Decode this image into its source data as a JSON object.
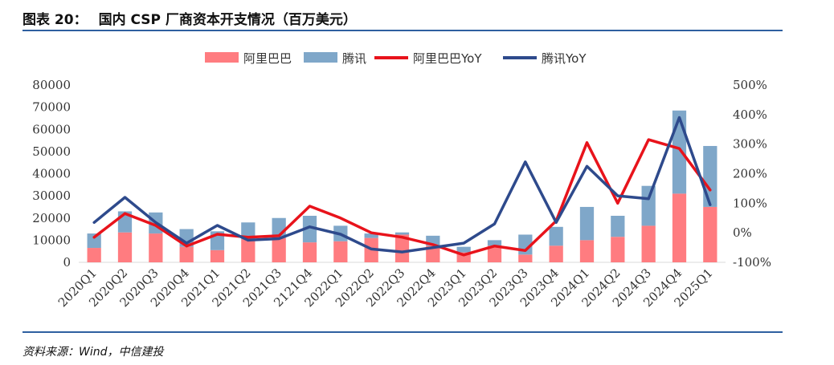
{
  "figure": {
    "number": "图表 20：",
    "title": "国内 CSP 厂商资本开支情况（百万美元）",
    "source": "资料来源：Wind，中信建投"
  },
  "colors": {
    "alibaba_bar": "#ff7c80",
    "tencent_bar": "#7fa7c9",
    "alibaba_line": "#e8131b",
    "tencent_line": "#2e4a8c",
    "rule": "#2e5fa0"
  },
  "chart_data": {
    "type": "bar",
    "stacked": true,
    "categories": [
      "2020Q1",
      "2020Q2",
      "2020Q3",
      "2020Q4",
      "2021Q1",
      "2021Q2",
      "2021Q3",
      "2121Q4",
      "2022Q1",
      "2022Q2",
      "2022Q3",
      "2022Q4",
      "2023Q1",
      "2023Q2",
      "2023Q3",
      "2023Q4",
      "2024Q1",
      "2024Q2",
      "2024Q3",
      "2024Q4",
      "2025Q1"
    ],
    "series": [
      {
        "name": "阿里巴巴",
        "kind": "bar",
        "axis": "left",
        "values": [
          6500,
          13500,
          13000,
          7000,
          5500,
          10500,
          11000,
          9000,
          9500,
          11000,
          12500,
          7500,
          4500,
          7500,
          3500,
          7500,
          10000,
          11500,
          16500,
          31000,
          25000
        ]
      },
      {
        "name": "腾讯",
        "kind": "bar",
        "axis": "left",
        "values": [
          6500,
          9500,
          9500,
          8000,
          8500,
          7500,
          9000,
          12000,
          7000,
          2000,
          1000,
          4500,
          2500,
          2500,
          9000,
          8500,
          15000,
          9500,
          18000,
          37500,
          27500
        ]
      },
      {
        "name": "阿里巴巴YoY",
        "kind": "line",
        "axis": "right",
        "values": [
          -15,
          65,
          25,
          -45,
          -5,
          -15,
          -10,
          90,
          50,
          0,
          -15,
          -40,
          -75,
          -45,
          -60,
          40,
          305,
          100,
          315,
          285,
          145
        ]
      },
      {
        "name": "腾讯YoY",
        "kind": "line",
        "axis": "right",
        "values": [
          35,
          120,
          35,
          -35,
          25,
          -25,
          -20,
          20,
          -5,
          -55,
          -65,
          -50,
          -35,
          30,
          240,
          35,
          225,
          125,
          115,
          390,
          95
        ]
      }
    ],
    "left_axis": {
      "min": 0,
      "max": 80000,
      "ticks": [
        "0",
        "10000",
        "20000",
        "30000",
        "40000",
        "50000",
        "60000",
        "70000",
        "80000"
      ]
    },
    "right_axis": {
      "min": -100,
      "max": 500,
      "ticks": [
        "-100%",
        "0%",
        "100%",
        "200%",
        "300%",
        "400%",
        "500%"
      ]
    },
    "legend": {
      "position": "top",
      "entries": [
        "阿里巴巴",
        "腾讯",
        "阿里巴巴YoY",
        "腾讯YoY"
      ]
    }
  }
}
